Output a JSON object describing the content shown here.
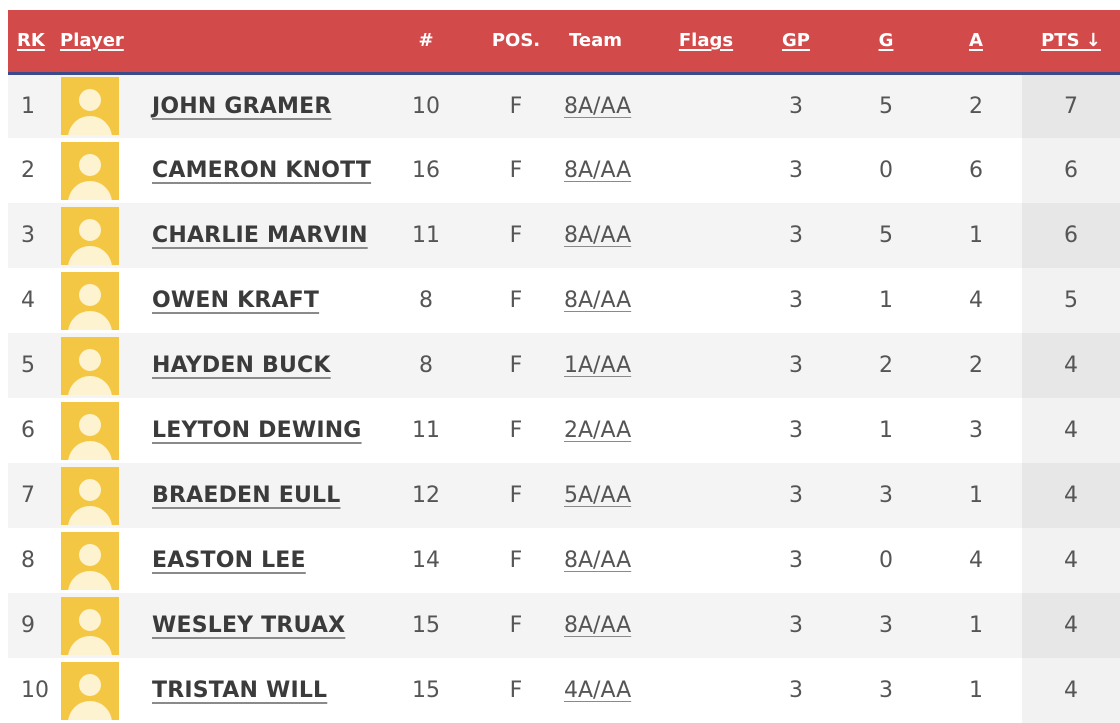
{
  "headers": {
    "rk": "RK",
    "player": "Player",
    "number": "#",
    "pos": "POS.",
    "team": "Team",
    "flags": "Flags",
    "gp": "GP",
    "g": "G",
    "a": "A",
    "pts": "PTS ↓"
  },
  "colors": {
    "header_bg": "#d34a4b",
    "header_border": "#3a4a8a",
    "avatar_bg": "#f3c744"
  },
  "rows": [
    {
      "rk": "1",
      "player": "JOHN GRAMER",
      "number": "10",
      "pos": "F",
      "team": "8A/AA",
      "flags": "",
      "gp": "3",
      "g": "5",
      "a": "2",
      "pts": "7",
      "avatar_icon": "default-avatar-icon"
    },
    {
      "rk": "2",
      "player": "CAMERON KNOTT",
      "number": "16",
      "pos": "F",
      "team": "8A/AA",
      "flags": "",
      "gp": "3",
      "g": "0",
      "a": "6",
      "pts": "6",
      "avatar_icon": "default-avatar-icon"
    },
    {
      "rk": "3",
      "player": "CHARLIE MARVIN",
      "number": "11",
      "pos": "F",
      "team": "8A/AA",
      "flags": "",
      "gp": "3",
      "g": "5",
      "a": "1",
      "pts": "6",
      "avatar_icon": "default-avatar-icon"
    },
    {
      "rk": "4",
      "player": "OWEN KRAFT",
      "number": "8",
      "pos": "F",
      "team": "8A/AA",
      "flags": "",
      "gp": "3",
      "g": "1",
      "a": "4",
      "pts": "5",
      "avatar_icon": "default-avatar-icon"
    },
    {
      "rk": "5",
      "player": "HAYDEN BUCK",
      "number": "8",
      "pos": "F",
      "team": "1A/AA",
      "flags": "",
      "gp": "3",
      "g": "2",
      "a": "2",
      "pts": "4",
      "avatar_icon": "default-avatar-icon"
    },
    {
      "rk": "6",
      "player": "LEYTON DEWING",
      "number": "11",
      "pos": "F",
      "team": "2A/AA",
      "flags": "",
      "gp": "3",
      "g": "1",
      "a": "3",
      "pts": "4",
      "avatar_icon": "default-avatar-icon"
    },
    {
      "rk": "7",
      "player": "BRAEDEN EULL",
      "number": "12",
      "pos": "F",
      "team": "5A/AA",
      "flags": "",
      "gp": "3",
      "g": "3",
      "a": "1",
      "pts": "4",
      "avatar_icon": "default-avatar-icon"
    },
    {
      "rk": "8",
      "player": "EASTON LEE",
      "number": "14",
      "pos": "F",
      "team": "8A/AA",
      "flags": "",
      "gp": "3",
      "g": "0",
      "a": "4",
      "pts": "4",
      "avatar_icon": "default-avatar-icon"
    },
    {
      "rk": "9",
      "player": "WESLEY TRUAX",
      "number": "15",
      "pos": "F",
      "team": "8A/AA",
      "flags": "",
      "gp": "3",
      "g": "3",
      "a": "1",
      "pts": "4",
      "avatar_icon": "default-avatar-icon"
    },
    {
      "rk": "10",
      "player": "TRISTAN WILL",
      "number": "15",
      "pos": "F",
      "team": "4A/AA",
      "flags": "",
      "gp": "3",
      "g": "3",
      "a": "1",
      "pts": "4",
      "avatar_icon": "default-avatar-icon"
    }
  ]
}
